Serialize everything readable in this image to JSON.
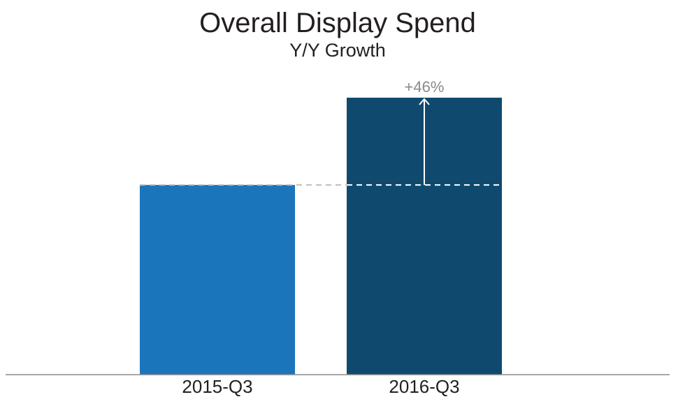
{
  "chart_data": {
    "type": "bar",
    "title": "Overall Display Spend",
    "subtitle": "Y/Y Growth",
    "xlabel": "",
    "ylabel": "",
    "categories": [
      "2015-Q3",
      "2016-Q3"
    ],
    "values": [
      100,
      146
    ],
    "ylim": [
      0,
      146
    ],
    "bar_colors": [
      "#1b75bb",
      "#0f4a6e"
    ],
    "axis_color": "#8a8a8a",
    "reference_line_color": "#bdbdbd",
    "annotation": {
      "text": "+46%",
      "arrow": "up",
      "from_category": "2015-Q3",
      "to_category": "2016-Q3"
    },
    "grid": false,
    "y_axis_visible": false,
    "legend": "none"
  }
}
